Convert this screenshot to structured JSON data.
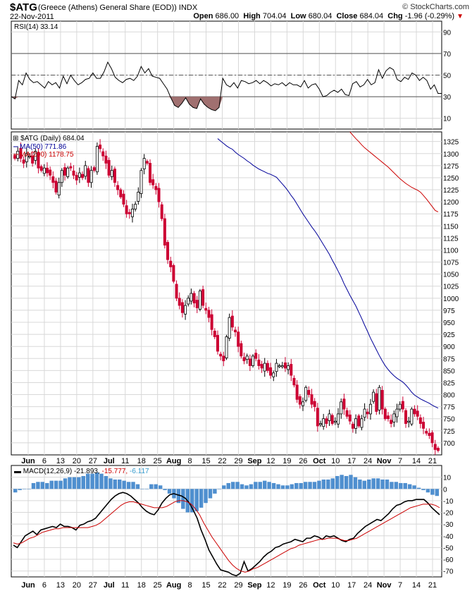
{
  "header": {
    "symbol": "$ATG",
    "name": "(Greece (Athens) General Share (EOD))  INDX",
    "credit": "© StockCharts.com",
    "date": "22-Nov-2011",
    "open_label": "Open",
    "open": "686.00",
    "high_label": "High",
    "high": "704.04",
    "low_label": "Low",
    "low": "680.04",
    "close_label": "Close",
    "close": "684.04",
    "chg_label": "Chg",
    "chg": "-1.96 (-0.29%)",
    "chg_icon": "down-triangle-icon",
    "down_color": "#cc0000"
  },
  "chart_data": [
    {
      "type": "line",
      "panel": "rsi",
      "label": "RSI(14) 33.14",
      "ylim": [
        0,
        100
      ],
      "yticks": [
        10,
        30,
        50,
        70,
        90
      ],
      "reference_lines": [
        30,
        50,
        70
      ],
      "overbought": 70,
      "oversold": 30,
      "fill_color": "#a07070",
      "series": [
        {
          "name": "RSI(14)",
          "color": "#000000",
          "values": [
            30,
            28,
            45,
            41,
            52,
            46,
            43,
            44,
            41,
            38,
            44,
            41,
            43,
            38,
            49,
            42,
            50,
            45,
            41,
            43,
            46,
            47,
            52,
            47,
            47,
            53,
            62,
            56,
            48,
            45,
            43,
            46,
            47,
            45,
            49,
            58,
            52,
            56,
            49,
            48,
            47,
            42,
            37,
            29,
            22,
            20,
            24,
            29,
            23,
            20,
            19,
            28,
            23,
            20,
            18,
            17,
            20,
            47,
            41,
            39,
            43,
            38,
            45,
            44,
            42,
            43,
            45,
            42,
            45,
            43,
            40,
            42,
            41,
            43,
            40,
            43,
            41,
            41,
            39,
            45,
            38,
            41,
            42,
            37,
            30,
            31,
            34,
            36,
            34,
            37,
            32,
            31,
            42,
            44,
            39,
            41,
            46,
            41,
            43,
            55,
            47,
            54,
            57,
            55,
            46,
            44,
            48,
            46,
            52,
            50,
            45,
            48,
            45,
            37,
            41,
            33,
            33
          ]
        }
      ]
    },
    {
      "type": "candlestick",
      "panel": "price",
      "label": "$ATG (Daily) 684.04",
      "ylim": [
        675,
        1345
      ],
      "yticks": [
        700,
        725,
        750,
        775,
        800,
        825,
        850,
        875,
        900,
        925,
        950,
        975,
        1000,
        1025,
        1050,
        1075,
        1100,
        1125,
        1150,
        1175,
        1200,
        1225,
        1250,
        1275,
        1300,
        1325
      ],
      "up_color": "#000000",
      "down_color": "#cc0033",
      "close": [
        1290,
        1305,
        1290,
        1280,
        1300,
        1295,
        1280,
        1305,
        1270,
        1265,
        1270,
        1260,
        1255,
        1240,
        1220,
        1240,
        1265,
        1255,
        1270,
        1270,
        1255,
        1245,
        1260,
        1250,
        1275,
        1240,
        1265,
        1265,
        1315,
        1310,
        1295,
        1280,
        1255,
        1265,
        1240,
        1225,
        1210,
        1195,
        1175,
        1175,
        1185,
        1195,
        1220,
        1265,
        1290,
        1280,
        1240,
        1235,
        1225,
        1200,
        1165,
        1110,
        1080,
        1065,
        1035,
        1000,
        985,
        970,
        985,
        1000,
        1010,
        990,
        980,
        1015,
        985,
        975,
        960,
        935,
        920,
        890,
        880,
        870,
        920,
        960,
        940,
        930,
        900,
        880,
        870,
        880,
        860,
        880,
        875,
        860,
        855,
        865,
        850,
        840,
        845,
        865,
        860,
        860,
        855,
        860,
        840,
        820,
        790,
        780,
        785,
        815,
        800,
        780,
        775,
        735,
        740,
        750,
        740,
        760,
        740,
        745,
        760,
        785,
        770,
        755,
        745,
        730,
        750,
        735,
        750,
        770,
        760,
        780,
        805,
        765,
        815,
        770,
        750,
        750,
        740,
        760,
        770,
        780,
        770,
        740,
        745,
        770,
        760,
        755,
        740,
        730,
        720,
        715,
        700,
        686,
        684
      ]
    },
    {
      "type": "line",
      "panel": "price-overlay",
      "series": [
        {
          "name": "MA(50) 771.86",
          "color": "#000099",
          "values": [
            1331,
            1326,
            1321,
            1316,
            1312,
            1309,
            1303,
            1298,
            1294,
            1290,
            1285,
            1281,
            1276,
            1272,
            1268,
            1265,
            1262,
            1259,
            1257,
            1254,
            1251,
            1244,
            1237,
            1230,
            1222,
            1213,
            1205,
            1195,
            1185,
            1175,
            1166,
            1157,
            1148,
            1140,
            1131,
            1121,
            1111,
            1101,
            1091,
            1079,
            1068,
            1056,
            1044,
            1030,
            1018,
            1006,
            995,
            984,
            971,
            958,
            944,
            931,
            917,
            905,
            893,
            881,
            870,
            860,
            852,
            845,
            839,
            834,
            830,
            826,
            820,
            813,
            805,
            799,
            795,
            791,
            788,
            785,
            782,
            778,
            775,
            772
          ]
        },
        {
          "name": "MA(200) 1178.75",
          "color": "#cc0000",
          "values": [
            1345,
            1338,
            1331,
            1325,
            1318,
            1312,
            1307,
            1302,
            1297,
            1292,
            1287,
            1282,
            1277,
            1272,
            1266,
            1260,
            1254,
            1248,
            1243,
            1238,
            1234,
            1230,
            1227,
            1224,
            1220,
            1213,
            1206,
            1198,
            1190,
            1182,
            1179
          ]
        }
      ]
    },
    {
      "type": "line",
      "panel": "macd",
      "label": "MACD(12,26,9)",
      "values_label": {
        "macd": "-21.893",
        "signal": "-15.777",
        "histogram": "-6.117"
      },
      "values_colors": {
        "macd": "#000000",
        "signal": "#cc0000",
        "histogram": "#3399cc"
      },
      "ylim": [
        -75,
        20
      ],
      "yticks": [
        -70,
        -60,
        -50,
        -40,
        -30,
        -20,
        -10,
        0,
        10
      ],
      "histogram_color": "#4f8fcf",
      "series": [
        {
          "name": "MACD",
          "color": "#000000",
          "values": [
            -48,
            -50,
            -45,
            -40,
            -38,
            -36,
            -39,
            -35,
            -34,
            -33,
            -32,
            -33,
            -30,
            -32,
            -32,
            -33,
            -35,
            -31,
            -30,
            -28,
            -27,
            -25,
            -21,
            -17,
            -13,
            -9,
            -6,
            -4,
            -3,
            -4,
            -6,
            -9,
            -12,
            -16,
            -19,
            -21,
            -22,
            -18,
            -12,
            -8,
            -5,
            -4,
            -5,
            -6,
            -8,
            -12,
            -18,
            -25,
            -35,
            -43,
            -52,
            -58,
            -64,
            -69,
            -70,
            -71,
            -73,
            -74,
            -72,
            -62,
            -70,
            -68,
            -65,
            -62,
            -58,
            -55,
            -53,
            -50,
            -49,
            -47,
            -46,
            -45,
            -43,
            -44,
            -45,
            -42,
            -42,
            -40,
            -41,
            -43,
            -40,
            -41,
            -40,
            -42,
            -44,
            -45,
            -43,
            -42,
            -38,
            -35,
            -32,
            -30,
            -28,
            -26,
            -27,
            -24,
            -21,
            -17,
            -14,
            -13,
            -11,
            -10,
            -10,
            -9,
            -9,
            -9,
            -12,
            -16,
            -19,
            -22
          ]
        },
        {
          "name": "Signal",
          "color": "#cc0000",
          "values": [
            -46,
            -47,
            -46,
            -44,
            -42,
            -41,
            -39,
            -37,
            -36,
            -35,
            -34,
            -34,
            -33,
            -33,
            -33,
            -33,
            -33,
            -33,
            -33,
            -32,
            -31,
            -29,
            -26,
            -23,
            -20,
            -17,
            -14,
            -12,
            -11,
            -11,
            -12,
            -13,
            -14,
            -15,
            -16,
            -16,
            -16,
            -15,
            -13,
            -11,
            -10,
            -10,
            -11,
            -13,
            -17,
            -22,
            -29,
            -35,
            -41,
            -46,
            -51,
            -56,
            -61,
            -65,
            -68,
            -70,
            -71,
            -70,
            -68,
            -67,
            -65,
            -63,
            -61,
            -59,
            -57,
            -55,
            -53,
            -51,
            -50,
            -48,
            -47,
            -46,
            -45,
            -44,
            -43,
            -43,
            -42,
            -42,
            -42,
            -43,
            -44,
            -44,
            -43,
            -42,
            -40,
            -38,
            -36,
            -34,
            -32,
            -30,
            -28,
            -26,
            -24,
            -22,
            -20,
            -18,
            -16,
            -15,
            -14,
            -13,
            -13,
            -13,
            -14,
            -16
          ]
        },
        {
          "name": "Histogram",
          "type": "bar",
          "color": "#4f8fcf",
          "values": [
            -3,
            -1,
            0,
            0,
            5,
            6,
            6,
            5,
            7,
            7,
            7,
            9,
            10,
            10,
            10,
            11,
            13,
            13,
            14,
            13,
            11,
            9,
            8,
            8,
            7,
            6,
            6,
            4,
            0,
            0,
            4,
            4,
            3,
            -1,
            -4,
            -8,
            -12,
            -17,
            -20,
            -20,
            -19,
            -16,
            -12,
            -8,
            -4,
            0,
            3,
            5,
            6,
            6,
            4,
            3,
            4,
            6,
            6,
            7,
            6,
            5,
            4,
            3,
            3,
            4,
            5,
            5,
            6,
            6,
            6,
            7,
            8,
            8,
            9,
            11,
            12,
            11,
            12,
            10,
            8,
            7,
            8,
            9,
            9,
            8,
            8,
            6,
            6,
            5,
            5,
            4,
            3,
            1,
            -1,
            -3,
            -5,
            -6
          ]
        }
      ]
    }
  ],
  "x_axis": {
    "labels": [
      "Jun",
      "6",
      "13",
      "20",
      "27",
      "Jul",
      "11",
      "18",
      "25",
      "Aug",
      "8",
      "15",
      "22",
      "29",
      "Sep",
      "12",
      "19",
      "26",
      "Oct",
      "10",
      "17",
      "24",
      "Nov",
      "7",
      "14",
      "21"
    ],
    "bold_labels": [
      "Jun",
      "Jul",
      "Aug",
      "Sep",
      "Oct",
      "Nov"
    ]
  }
}
